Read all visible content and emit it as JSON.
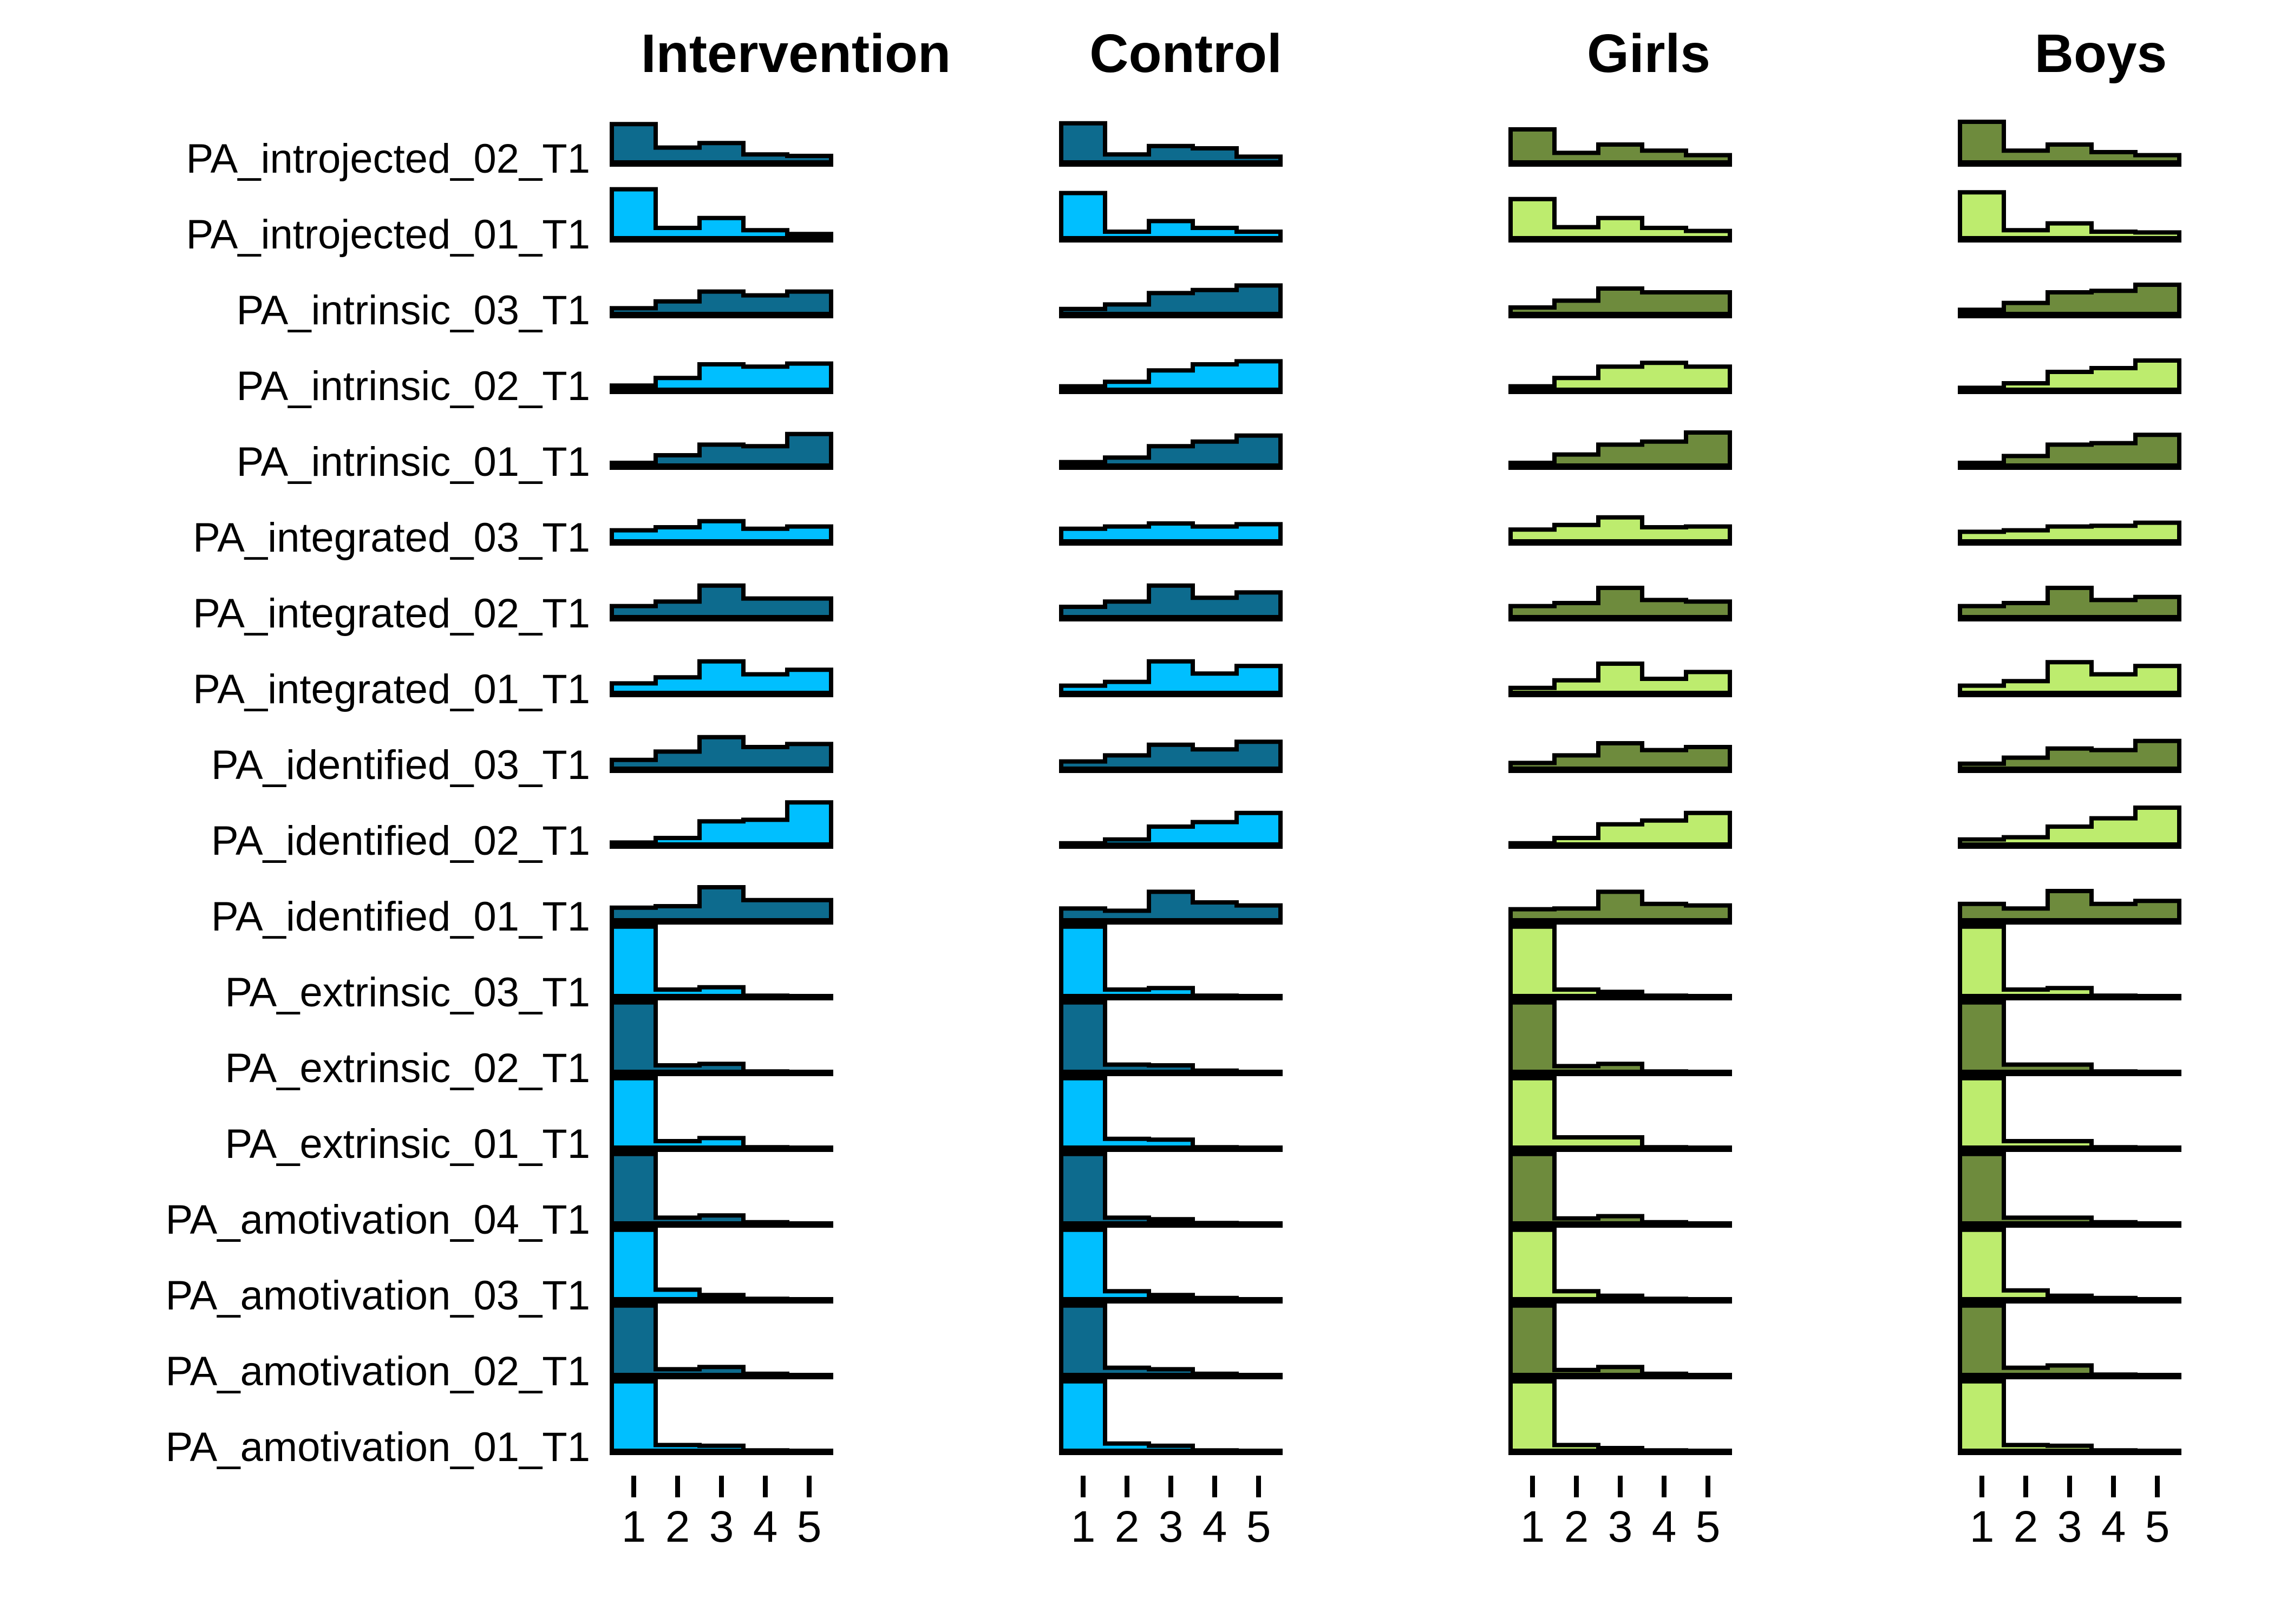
{
  "colors": {
    "dark_blue": "#0d6b8e",
    "light_blue": "#00bfff",
    "dark_green": "#6e8b3d",
    "light_green": "#bdec6e",
    "outline": "#000000",
    "background": "#ffffff"
  },
  "layout_hints": {
    "legend": "none",
    "grid": "off",
    "column_x_centers": [
      1470,
      2190,
      3045,
      3880
    ],
    "chart_column_lefts": [
      1130,
      1960,
      2790,
      3620
    ],
    "chart_column_width": 405
  },
  "chart_data": {
    "type": "bar",
    "subtype": "histogram-small-multiples",
    "title": "",
    "xlabel": "",
    "ylabel": "",
    "x": [
      1,
      2,
      3,
      4,
      5
    ],
    "bin_edges": [
      0.5,
      1.5,
      2.5,
      3.5,
      4.5,
      5.5
    ],
    "x_tick_labels": [
      "1",
      "2",
      "3",
      "4",
      "5"
    ],
    "columns": [
      "Intervention",
      "Control",
      "Girls",
      "Boys"
    ],
    "column_palettes": {
      "Intervention": [
        "dark_blue",
        "light_blue"
      ],
      "Control": [
        "dark_blue",
        "light_blue"
      ],
      "Girls": [
        "dark_green",
        "light_green"
      ],
      "Boys": [
        "dark_green",
        "light_green"
      ]
    },
    "rows": [
      "PA_introjected_02_T1",
      "PA_introjected_01_T1",
      "PA_intrinsic_03_T1",
      "PA_intrinsic_02_T1",
      "PA_intrinsic_01_T1",
      "PA_integrated_03_T1",
      "PA_integrated_02_T1",
      "PA_integrated_01_T1",
      "PA_identified_03_T1",
      "PA_identified_02_T1",
      "PA_identified_01_T1",
      "PA_extrinsic_03_T1",
      "PA_extrinsic_02_T1",
      "PA_extrinsic_01_T1",
      "PA_amotivation_04_T1",
      "PA_amotivation_03_T1",
      "PA_amotivation_02_T1",
      "PA_amotivation_01_T1"
    ],
    "row_shades": [
      "dark",
      "light",
      "dark",
      "light",
      "dark",
      "light",
      "dark",
      "light",
      "dark",
      "light",
      "dark",
      "light",
      "dark",
      "light",
      "dark",
      "light",
      "dark",
      "light"
    ],
    "units": "relative density (fraction of row band height)",
    "values": {
      "Intervention": [
        [
          0.52,
          0.21,
          0.27,
          0.12,
          0.1
        ],
        [
          0.66,
          0.15,
          0.28,
          0.12,
          0.07
        ],
        [
          0.09,
          0.18,
          0.31,
          0.26,
          0.31
        ],
        [
          0.07,
          0.17,
          0.35,
          0.32,
          0.36
        ],
        [
          0.05,
          0.15,
          0.29,
          0.27,
          0.43
        ],
        [
          0.16,
          0.2,
          0.28,
          0.18,
          0.21
        ],
        [
          0.16,
          0.22,
          0.43,
          0.26,
          0.26
        ],
        [
          0.14,
          0.22,
          0.43,
          0.26,
          0.32
        ],
        [
          0.13,
          0.24,
          0.43,
          0.3,
          0.34
        ],
        [
          0.04,
          0.1,
          0.32,
          0.34,
          0.57
        ],
        [
          0.18,
          0.2,
          0.45,
          0.28,
          0.28
        ],
        [
          0.93,
          0.1,
          0.13,
          0.02,
          0.01
        ],
        [
          0.93,
          0.1,
          0.12,
          0.02,
          0.01
        ],
        [
          0.93,
          0.1,
          0.14,
          0.02,
          0.01
        ],
        [
          0.93,
          0.09,
          0.12,
          0.03,
          0.01
        ],
        [
          0.93,
          0.14,
          0.07,
          0.02,
          0.01
        ],
        [
          0.93,
          0.09,
          0.12,
          0.03,
          0.01
        ],
        [
          0.93,
          0.09,
          0.08,
          0.02,
          0.01
        ]
      ],
      "Control": [
        [
          0.53,
          0.12,
          0.23,
          0.2,
          0.09
        ],
        [
          0.61,
          0.1,
          0.24,
          0.15,
          0.1
        ],
        [
          0.08,
          0.14,
          0.29,
          0.33,
          0.39
        ],
        [
          0.06,
          0.12,
          0.27,
          0.35,
          0.39
        ],
        [
          0.06,
          0.12,
          0.27,
          0.33,
          0.41
        ],
        [
          0.18,
          0.21,
          0.25,
          0.21,
          0.24
        ],
        [
          0.15,
          0.22,
          0.43,
          0.27,
          0.34
        ],
        [
          0.11,
          0.16,
          0.43,
          0.27,
          0.37
        ],
        [
          0.11,
          0.19,
          0.33,
          0.27,
          0.37
        ],
        [
          0.03,
          0.08,
          0.25,
          0.31,
          0.43
        ],
        [
          0.17,
          0.14,
          0.39,
          0.25,
          0.21
        ],
        [
          0.93,
          0.1,
          0.12,
          0.02,
          0.01
        ],
        [
          0.93,
          0.11,
          0.1,
          0.03,
          0.01
        ],
        [
          0.93,
          0.13,
          0.12,
          0.02,
          0.01
        ],
        [
          0.93,
          0.09,
          0.07,
          0.02,
          0.01
        ],
        [
          0.93,
          0.12,
          0.07,
          0.03,
          0.01
        ],
        [
          0.93,
          0.11,
          0.09,
          0.03,
          0.01
        ],
        [
          0.93,
          0.11,
          0.08,
          0.02,
          0.01
        ]
      ],
      "Girls": [
        [
          0.45,
          0.14,
          0.25,
          0.17,
          0.11
        ],
        [
          0.53,
          0.16,
          0.28,
          0.15,
          0.11
        ],
        [
          0.1,
          0.19,
          0.35,
          0.3,
          0.3
        ],
        [
          0.06,
          0.17,
          0.32,
          0.37,
          0.32
        ],
        [
          0.05,
          0.16,
          0.29,
          0.33,
          0.45
        ],
        [
          0.17,
          0.23,
          0.33,
          0.2,
          0.21
        ],
        [
          0.16,
          0.2,
          0.4,
          0.24,
          0.22
        ],
        [
          0.08,
          0.18,
          0.4,
          0.2,
          0.29
        ],
        [
          0.09,
          0.19,
          0.35,
          0.26,
          0.3
        ],
        [
          0.03,
          0.1,
          0.28,
          0.33,
          0.43
        ],
        [
          0.16,
          0.17,
          0.39,
          0.23,
          0.21
        ],
        [
          0.93,
          0.1,
          0.07,
          0.02,
          0.01
        ],
        [
          0.93,
          0.09,
          0.12,
          0.02,
          0.01
        ],
        [
          0.93,
          0.15,
          0.15,
          0.02,
          0.01
        ],
        [
          0.93,
          0.08,
          0.11,
          0.03,
          0.01
        ],
        [
          0.93,
          0.12,
          0.06,
          0.02,
          0.01
        ],
        [
          0.93,
          0.08,
          0.12,
          0.03,
          0.01
        ],
        [
          0.93,
          0.09,
          0.05,
          0.02,
          0.01
        ]
      ],
      "Boys": [
        [
          0.55,
          0.17,
          0.25,
          0.15,
          0.11
        ],
        [
          0.62,
          0.12,
          0.21,
          0.1,
          0.09
        ],
        [
          0.07,
          0.16,
          0.3,
          0.32,
          0.4
        ],
        [
          0.04,
          0.1,
          0.25,
          0.3,
          0.4
        ],
        [
          0.05,
          0.14,
          0.29,
          0.31,
          0.42
        ],
        [
          0.14,
          0.16,
          0.21,
          0.22,
          0.26
        ],
        [
          0.16,
          0.2,
          0.4,
          0.24,
          0.28
        ],
        [
          0.11,
          0.17,
          0.42,
          0.26,
          0.37
        ],
        [
          0.08,
          0.16,
          0.28,
          0.26,
          0.38
        ],
        [
          0.08,
          0.11,
          0.25,
          0.36,
          0.5
        ],
        [
          0.23,
          0.17,
          0.4,
          0.23,
          0.27
        ],
        [
          0.93,
          0.1,
          0.12,
          0.02,
          0.01
        ],
        [
          0.93,
          0.11,
          0.11,
          0.02,
          0.01
        ],
        [
          0.93,
          0.1,
          0.1,
          0.02,
          0.01
        ],
        [
          0.93,
          0.09,
          0.09,
          0.03,
          0.01
        ],
        [
          0.93,
          0.13,
          0.06,
          0.03,
          0.01
        ],
        [
          0.93,
          0.11,
          0.14,
          0.02,
          0.01
        ],
        [
          0.93,
          0.09,
          0.08,
          0.02,
          0.01
        ]
      ]
    }
  }
}
